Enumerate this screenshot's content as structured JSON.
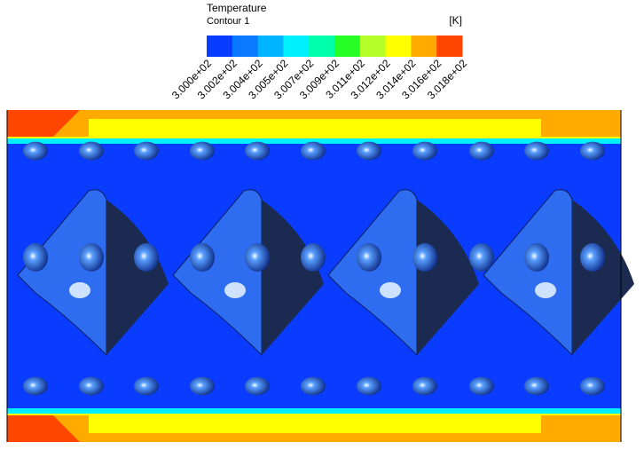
{
  "legend": {
    "title": "Temperature",
    "subtitle": "Contour 1",
    "unit": "[K]",
    "labels": [
      "3.000e+02",
      "3.002e+02",
      "3.004e+02",
      "3.005e+02",
      "3.007e+02",
      "3.009e+02",
      "3.011e+02",
      "3.012e+02",
      "3.014e+02",
      "3.016e+02",
      "3.018e+02"
    ],
    "colors": [
      "#0a3cff",
      "#0a78ff",
      "#00b4ff",
      "#00f0ff",
      "#00ffaa",
      "#28ff28",
      "#b4ff28",
      "#ffff00",
      "#ffaa00",
      "#ff4600"
    ]
  }
}
